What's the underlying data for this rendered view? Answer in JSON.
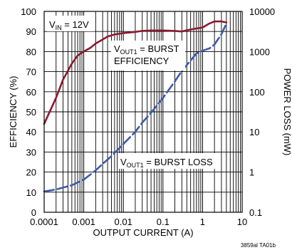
{
  "chart_data": {
    "type": "line",
    "xlabel": "OUTPUT CURRENT (A)",
    "ylabel_left": "EFFICIENCY (%)",
    "ylabel_right": "POWER LOSS (mW)",
    "x_scale": "log",
    "xlim": [
      0.0001,
      10
    ],
    "x_ticks": [
      "0.0001",
      "0.001",
      "0.01",
      "0.1",
      "1",
      "10"
    ],
    "y_left_lim": [
      0,
      100
    ],
    "y_left_ticks": [
      "0",
      "10",
      "20",
      "30",
      "40",
      "50",
      "60",
      "70",
      "80",
      "90",
      "100"
    ],
    "y_right_scale": "log",
    "y_right_lim": [
      0.1,
      10000
    ],
    "y_right_ticks": [
      "0.1",
      "1",
      "10",
      "100",
      "1000",
      "10000"
    ],
    "grid": true,
    "condition_label": {
      "main": "V",
      "sub": "IN",
      "rest": " = 12V"
    },
    "efficiency_label": {
      "line1_main": "V",
      "line1_sub": "OUT1",
      "line1_rest": " = BURST",
      "line2": "EFFICIENCY"
    },
    "loss_label": {
      "main": "V",
      "sub": "OUT1",
      "rest": " = BURST LOSS"
    },
    "figure_id": "3859al TA01b",
    "series": [
      {
        "axis": "left",
        "color": "#8b1a2f",
        "style": "solid",
        "x": [
          0.0001,
          0.0002,
          0.0003,
          0.0005,
          0.0007,
          0.001,
          0.0015,
          0.002,
          0.003,
          0.004,
          0.006,
          0.01,
          0.02,
          0.03,
          0.05,
          0.1,
          0.2,
          0.3,
          0.5,
          0.7,
          1,
          1.5,
          2,
          3,
          4
        ],
        "y": [
          44,
          57,
          66,
          74,
          78,
          80,
          82,
          84,
          86,
          87.5,
          88.5,
          89.2,
          89.8,
          90.3,
          90.5,
          90.5,
          90.3,
          90,
          91,
          91.5,
          92,
          94,
          95,
          95,
          94.5
        ]
      },
      {
        "axis": "right",
        "color": "#3d5ca8",
        "style": "dashed",
        "x": [
          0.0001,
          0.0002,
          0.0003,
          0.0005,
          0.0007,
          0.001,
          0.002,
          0.003,
          0.005,
          0.01,
          0.02,
          0.03,
          0.05,
          0.1,
          0.2,
          0.3,
          0.5,
          0.7,
          1,
          1.5,
          2,
          3,
          4
        ],
        "y": [
          0.33,
          0.37,
          0.41,
          0.47,
          0.55,
          0.65,
          1.1,
          1.6,
          2.5,
          5,
          10,
          17,
          30,
          70,
          180,
          330,
          600,
          900,
          1050,
          1200,
          1500,
          2700,
          5000
        ]
      }
    ]
  }
}
